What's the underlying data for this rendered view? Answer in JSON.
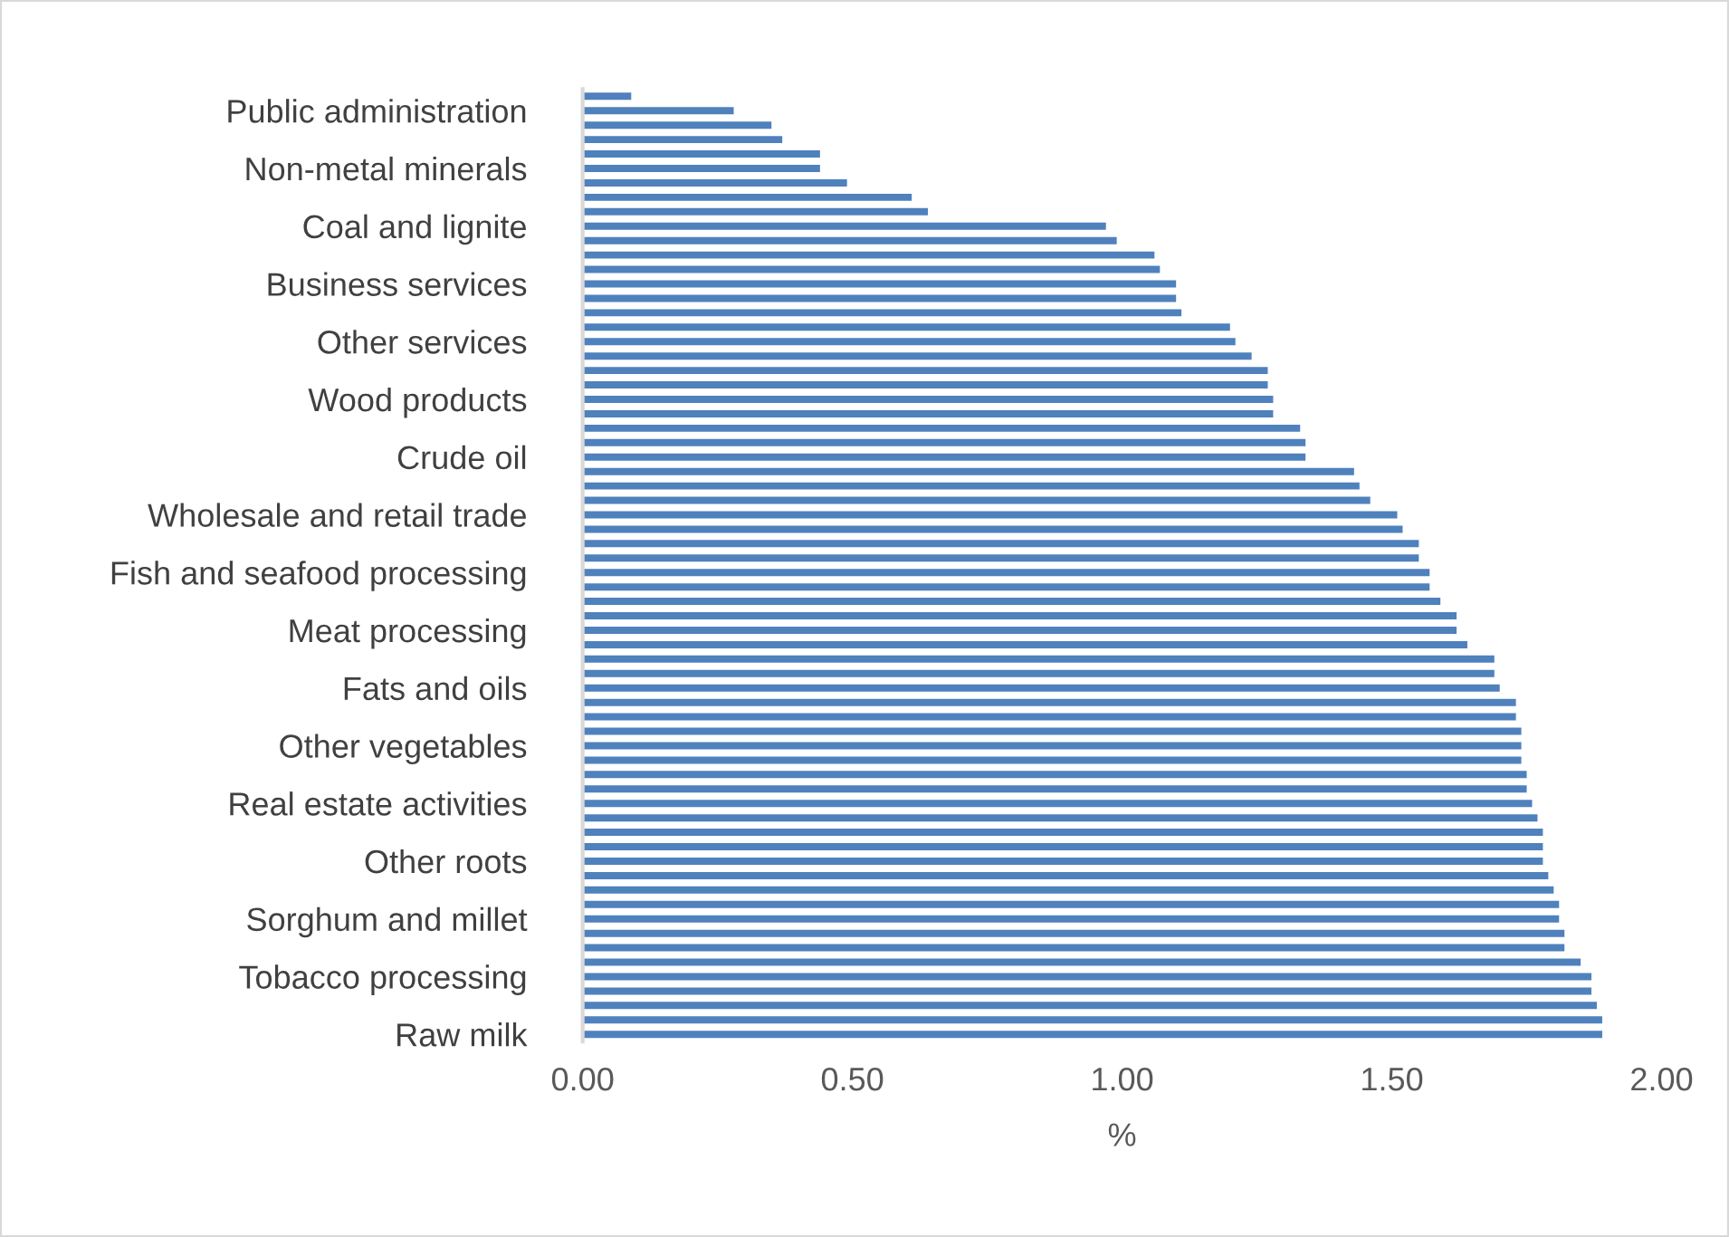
{
  "chart_data": {
    "type": "bar",
    "orientation": "horizontal",
    "xlabel": "%",
    "categories": [
      null,
      "Public administration",
      null,
      null,
      null,
      "Non-metal minerals",
      null,
      null,
      null,
      "Coal and lignite",
      null,
      null,
      null,
      "Business services",
      null,
      null,
      null,
      "Other services",
      null,
      null,
      null,
      "Wood products",
      null,
      null,
      null,
      "Crude oil",
      null,
      null,
      null,
      "Wholesale and retail trade",
      null,
      null,
      null,
      "Fish and seafood processing",
      null,
      null,
      null,
      "Meat processing",
      null,
      null,
      null,
      "Fats and oils",
      null,
      null,
      null,
      "Other vegetables",
      null,
      null,
      null,
      "Real estate activities",
      null,
      null,
      null,
      "Other roots",
      null,
      null,
      null,
      "Sorghum and millet",
      null,
      null,
      null,
      "Tobacco processing",
      null,
      null,
      null,
      "Raw milk"
    ],
    "values": [
      0.09,
      0.28,
      0.35,
      0.37,
      0.44,
      0.44,
      0.49,
      0.61,
      0.64,
      0.97,
      0.99,
      1.06,
      1.07,
      1.1,
      1.1,
      1.11,
      1.2,
      1.21,
      1.24,
      1.27,
      1.27,
      1.28,
      1.28,
      1.33,
      1.34,
      1.34,
      1.43,
      1.44,
      1.46,
      1.51,
      1.52,
      1.55,
      1.55,
      1.57,
      1.57,
      1.59,
      1.62,
      1.62,
      1.64,
      1.69,
      1.69,
      1.7,
      1.73,
      1.73,
      1.74,
      1.74,
      1.74,
      1.75,
      1.75,
      1.76,
      1.77,
      1.78,
      1.78,
      1.78,
      1.79,
      1.8,
      1.81,
      1.81,
      1.82,
      1.82,
      1.85,
      1.87,
      1.87,
      1.88,
      1.89,
      1.89
    ],
    "color": "#4f81bd",
    "xlim": [
      0,
      2
    ],
    "xticks": [
      {
        "value": 0,
        "label": "0.00"
      },
      {
        "value": 0.5,
        "label": "0.50"
      },
      {
        "value": 1,
        "label": "1.00"
      },
      {
        "value": 1.5,
        "label": "1.50"
      },
      {
        "value": 2,
        "label": "2.00"
      }
    ],
    "grid": false,
    "legend": false
  }
}
